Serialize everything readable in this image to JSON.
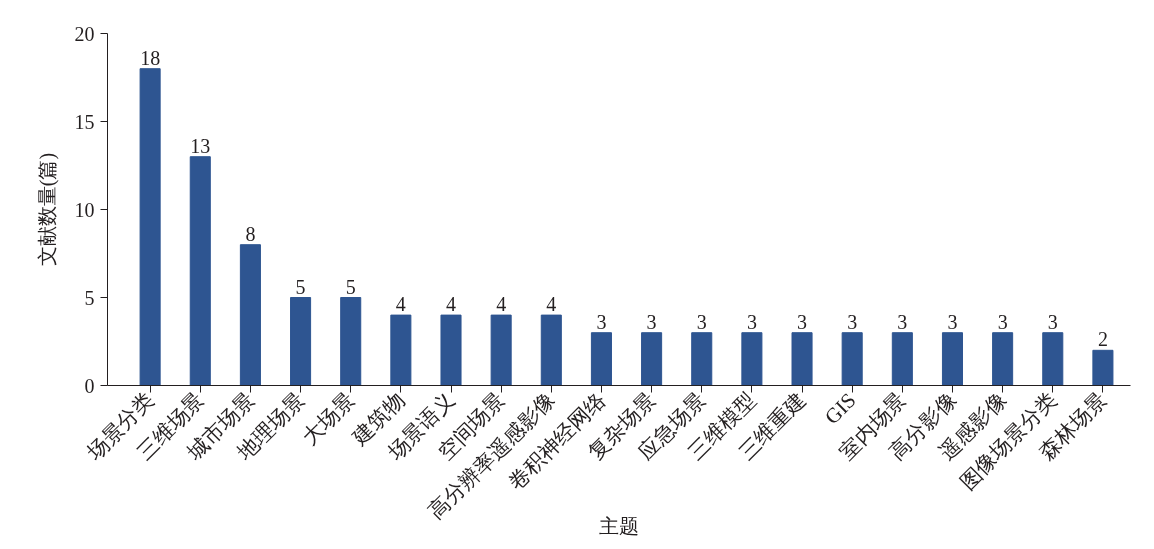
{
  "chart_data": {
    "type": "bar",
    "xlabel": "主题",
    "ylabel": "文献数量(篇)",
    "categories": [
      "场景分类",
      "三维场景",
      "城市场景",
      "地理场景",
      "大场景",
      "建筑物",
      "场景语义",
      "空间场景",
      "高分辨率遥感影像",
      "卷积神经网络",
      "复杂场景",
      "应急场景",
      "三维模型",
      "三维重建",
      "GIS",
      "室内场景",
      "高分影像",
      "遥感影像",
      "图像场景分类",
      "森林场景"
    ],
    "values": [
      18,
      13,
      8,
      5,
      5,
      4,
      4,
      4,
      4,
      3,
      3,
      3,
      3,
      3,
      3,
      3,
      3,
      3,
      3,
      2
    ],
    "color": "#2e5591",
    "ylim": [
      0,
      20
    ],
    "yticks": [
      0,
      5,
      10,
      15,
      20
    ],
    "data_labels": true
  }
}
